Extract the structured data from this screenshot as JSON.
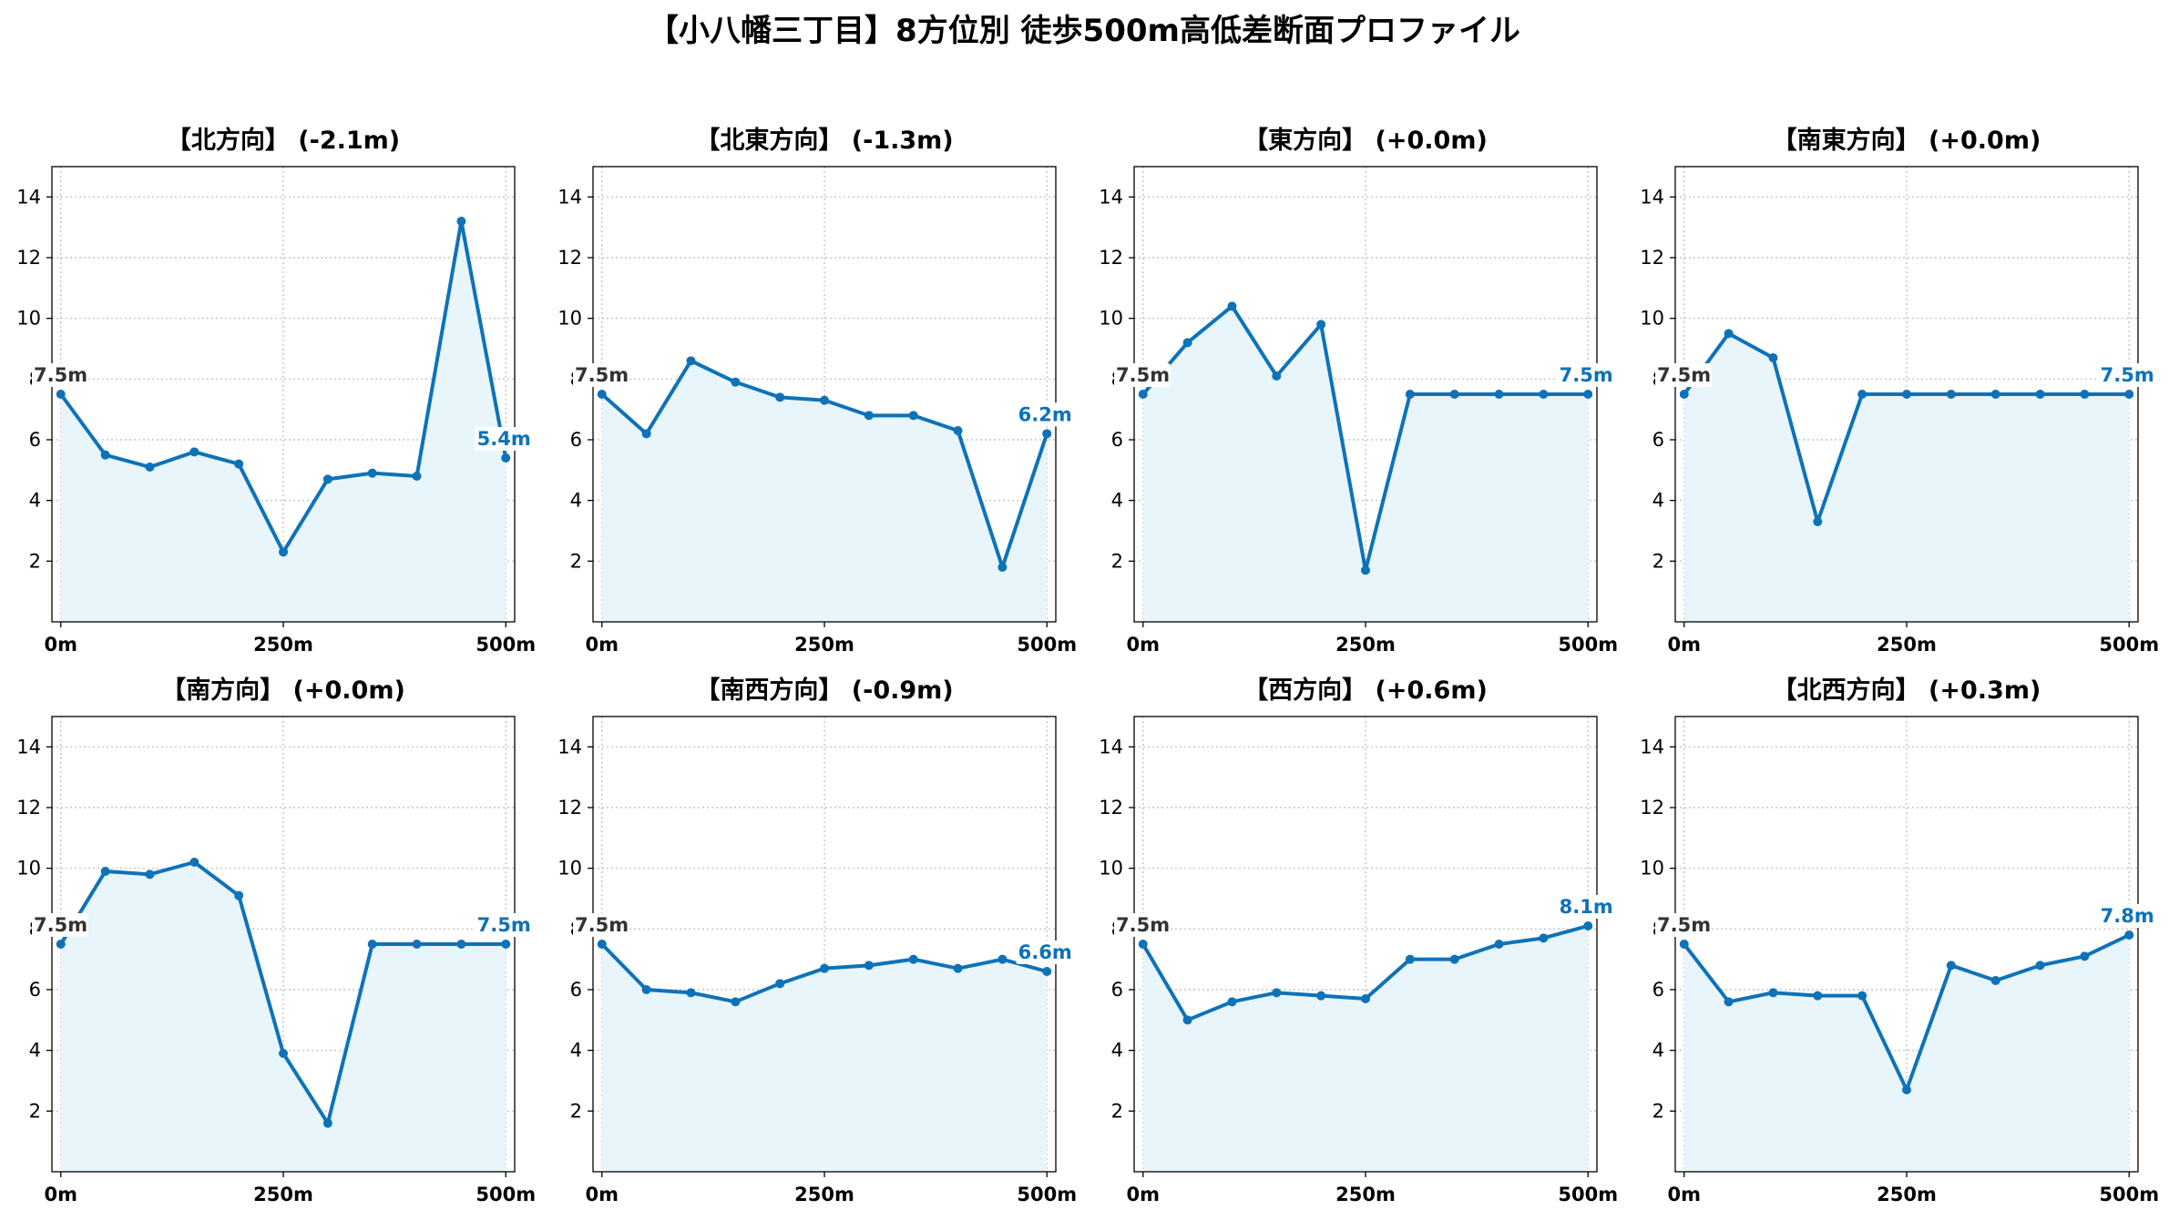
{
  "figure_title": "【小八幡三丁目】8方位別 徒歩500m高低差断面プロファイル",
  "colors": {
    "line": "#0e72b8",
    "fill": "#e8f5fb",
    "grid": "#bbbbbb",
    "start_label": "#333333",
    "end_label": "#0e72b8"
  },
  "chart_data": [
    {
      "type": "area",
      "title": "【北方向】 (-2.1m)",
      "x": [
        0,
        50,
        100,
        150,
        200,
        250,
        300,
        350,
        400,
        450,
        500
      ],
      "y": [
        7.5,
        5.5,
        5.1,
        5.6,
        5.2,
        2.3,
        4.7,
        4.9,
        4.8,
        13.2,
        5.4
      ],
      "xticks": [
        "0m",
        "250m",
        "500m"
      ],
      "yticks": [
        "2",
        "4",
        "6",
        "8",
        "10",
        "12",
        "14"
      ],
      "start_label": "7.5m",
      "end_label": "5.4m",
      "ylim": [
        0,
        15
      ],
      "xlim": [
        -10,
        510
      ],
      "grid": true
    },
    {
      "type": "area",
      "title": "【北東方向】 (-1.3m)",
      "x": [
        0,
        50,
        100,
        150,
        200,
        250,
        300,
        350,
        400,
        450,
        500
      ],
      "y": [
        7.5,
        6.2,
        8.6,
        7.9,
        7.4,
        7.3,
        6.8,
        6.8,
        6.3,
        1.8,
        6.2
      ],
      "xticks": [
        "0m",
        "250m",
        "500m"
      ],
      "yticks": [
        "2",
        "4",
        "6",
        "8",
        "10",
        "12",
        "14"
      ],
      "start_label": "7.5m",
      "end_label": "6.2m",
      "ylim": [
        0,
        15
      ],
      "xlim": [
        -10,
        510
      ],
      "grid": true
    },
    {
      "type": "area",
      "title": "【東方向】 (+0.0m)",
      "x": [
        0,
        50,
        100,
        150,
        200,
        250,
        300,
        350,
        400,
        450,
        500
      ],
      "y": [
        7.5,
        9.2,
        10.4,
        8.1,
        9.8,
        1.7,
        7.5,
        7.5,
        7.5,
        7.5,
        7.5
      ],
      "xticks": [
        "0m",
        "250m",
        "500m"
      ],
      "yticks": [
        "2",
        "4",
        "6",
        "8",
        "10",
        "12",
        "14"
      ],
      "start_label": "7.5m",
      "end_label": "7.5m",
      "ylim": [
        0,
        15
      ],
      "xlim": [
        -10,
        510
      ],
      "grid": true
    },
    {
      "type": "area",
      "title": "【南東方向】 (+0.0m)",
      "x": [
        0,
        50,
        100,
        150,
        200,
        250,
        300,
        350,
        400,
        450,
        500
      ],
      "y": [
        7.5,
        9.5,
        8.7,
        3.3,
        7.5,
        7.5,
        7.5,
        7.5,
        7.5,
        7.5,
        7.5
      ],
      "xticks": [
        "0m",
        "250m",
        "500m"
      ],
      "yticks": [
        "2",
        "4",
        "6",
        "8",
        "10",
        "12",
        "14"
      ],
      "start_label": "7.5m",
      "end_label": "7.5m",
      "ylim": [
        0,
        15
      ],
      "xlim": [
        -10,
        510
      ],
      "grid": true
    },
    {
      "type": "area",
      "title": "【南方向】 (+0.0m)",
      "x": [
        0,
        50,
        100,
        150,
        200,
        250,
        300,
        350,
        400,
        450,
        500
      ],
      "y": [
        7.5,
        9.9,
        9.8,
        10.2,
        9.1,
        3.9,
        1.6,
        7.5,
        7.5,
        7.5,
        7.5
      ],
      "xticks": [
        "0m",
        "250m",
        "500m"
      ],
      "yticks": [
        "2",
        "4",
        "6",
        "8",
        "10",
        "12",
        "14"
      ],
      "start_label": "7.5m",
      "end_label": "7.5m",
      "ylim": [
        0,
        15
      ],
      "xlim": [
        -10,
        510
      ],
      "grid": true
    },
    {
      "type": "area",
      "title": "【南西方向】 (-0.9m)",
      "x": [
        0,
        50,
        100,
        150,
        200,
        250,
        300,
        350,
        400,
        450,
        500
      ],
      "y": [
        7.5,
        6.0,
        5.9,
        5.6,
        6.2,
        6.7,
        6.8,
        7.0,
        6.7,
        7.0,
        6.6
      ],
      "xticks": [
        "0m",
        "250m",
        "500m"
      ],
      "yticks": [
        "2",
        "4",
        "6",
        "8",
        "10",
        "12",
        "14"
      ],
      "start_label": "7.5m",
      "end_label": "6.6m",
      "ylim": [
        0,
        15
      ],
      "xlim": [
        -10,
        510
      ],
      "grid": true
    },
    {
      "type": "area",
      "title": "【西方向】 (+0.6m)",
      "x": [
        0,
        50,
        100,
        150,
        200,
        250,
        300,
        350,
        400,
        450,
        500
      ],
      "y": [
        7.5,
        5.0,
        5.6,
        5.9,
        5.8,
        5.7,
        7.0,
        7.0,
        7.5,
        7.7,
        8.1
      ],
      "xticks": [
        "0m",
        "250m",
        "500m"
      ],
      "yticks": [
        "2",
        "4",
        "6",
        "8",
        "10",
        "12",
        "14"
      ],
      "start_label": "7.5m",
      "end_label": "8.1m",
      "ylim": [
        0,
        15
      ],
      "xlim": [
        -10,
        510
      ],
      "grid": true
    },
    {
      "type": "area",
      "title": "【北西方向】 (+0.3m)",
      "x": [
        0,
        50,
        100,
        150,
        200,
        250,
        300,
        350,
        400,
        450,
        500
      ],
      "y": [
        7.5,
        5.6,
        5.9,
        5.8,
        5.8,
        2.7,
        6.8,
        6.3,
        6.8,
        7.1,
        7.8
      ],
      "xticks": [
        "0m",
        "250m",
        "500m"
      ],
      "yticks": [
        "2",
        "4",
        "6",
        "8",
        "10",
        "12",
        "14"
      ],
      "start_label": "7.5m",
      "end_label": "7.8m",
      "ylim": [
        0,
        15
      ],
      "xlim": [
        -10,
        510
      ],
      "grid": true
    }
  ]
}
